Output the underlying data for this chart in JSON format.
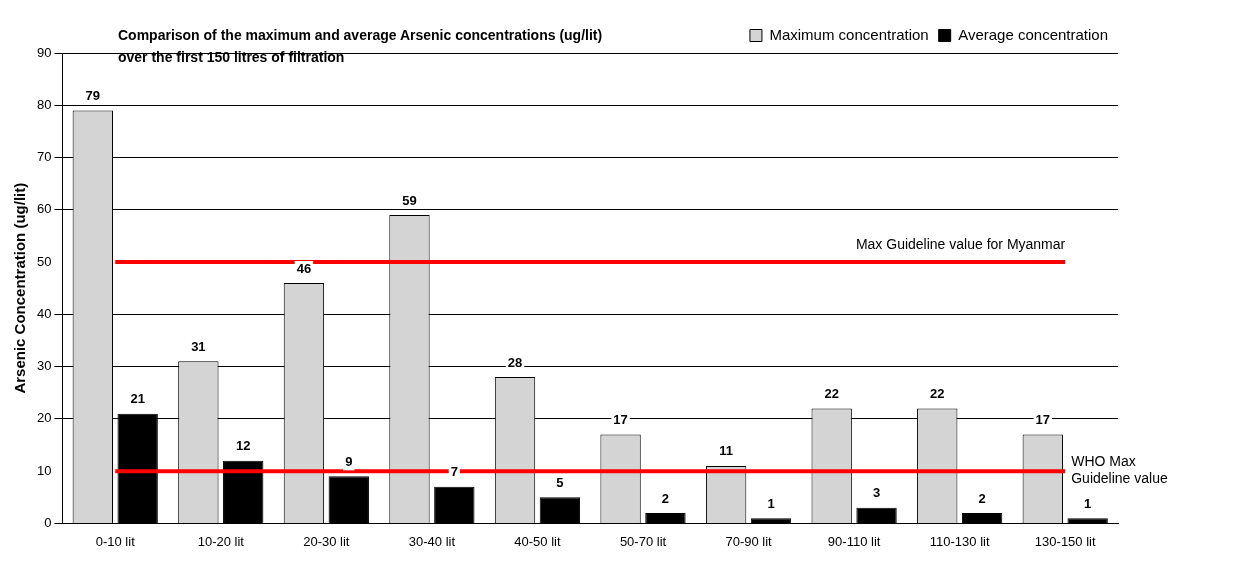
{
  "chart_data": {
    "type": "bar",
    "title": "Comparison of the maximum and average Arsenic concentrations (ug/lit) over the first 150 litres of filtration",
    "ylabel": "Arsenic Concentration (ug/lit)",
    "categories": [
      "0-10 lit",
      "10-20 lit",
      "20-30 lit",
      "30-40 lit",
      "40-50 lit",
      "50-70 lit",
      "70-90 lit",
      "90-110 lit",
      "110-130 lit",
      "130-150 lit"
    ],
    "series": [
      {
        "name": "Maximum concentration",
        "color": "#d4d4d4",
        "values": [
          79,
          31,
          46,
          59,
          28,
          17,
          11,
          22,
          22,
          17
        ]
      },
      {
        "name": "Average concentration",
        "color": "#000000",
        "values": [
          21,
          12,
          9,
          7,
          5,
          2,
          1,
          3,
          2,
          1
        ]
      }
    ],
    "ylim": [
      0,
      90
    ],
    "yticks": [
      0,
      10,
      20,
      30,
      40,
      50,
      60,
      70,
      80,
      90
    ],
    "grid": "y",
    "legend": "top right",
    "data_labels": true,
    "ref_lines": [
      {
        "axis": "y",
        "value": 50,
        "label": "Max Guideline value for Myanmar",
        "color": "#ff0000"
      },
      {
        "axis": "y",
        "value": 10,
        "label": "WHO Max Guideline value",
        "color": "#ff0000"
      }
    ]
  }
}
